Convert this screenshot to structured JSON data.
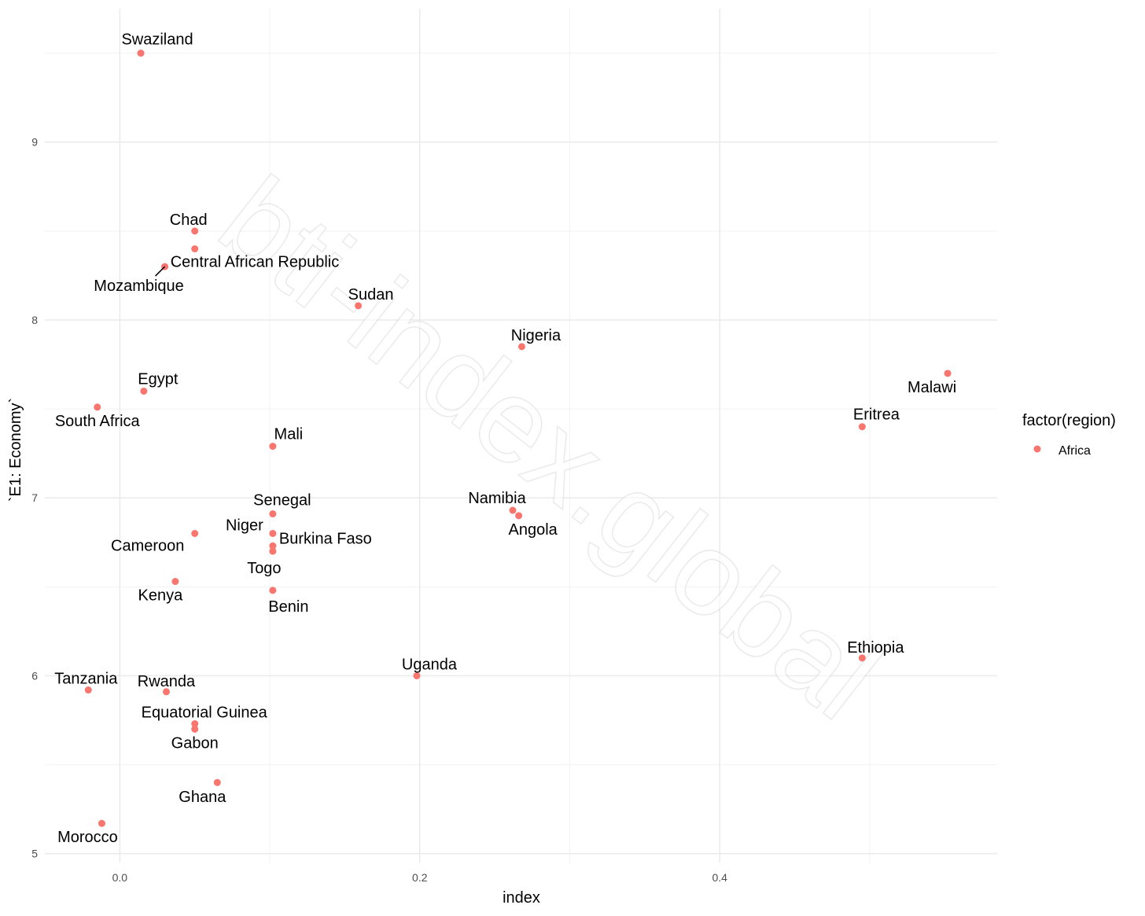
{
  "chart_data": {
    "type": "scatter",
    "xlabel": "index",
    "ylabel": "`E1: Economy`",
    "xlim": [
      -0.05,
      0.585
    ],
    "ylim": [
      4.95,
      9.75
    ],
    "x_ticks": [
      0.0,
      0.2,
      0.4
    ],
    "x_tick_labels": [
      "0.0",
      "0.2",
      "0.4"
    ],
    "y_ticks": [
      5,
      6,
      7,
      8,
      9
    ],
    "y_tick_labels": [
      "5",
      "6",
      "7",
      "8",
      "9"
    ],
    "grid": true,
    "legend": {
      "title": "factor(region)",
      "position": "right",
      "entries": [
        {
          "label": "Africa",
          "color": "#F8766D"
        }
      ]
    },
    "watermark": "bti-index.global",
    "points": [
      {
        "label": "Swaziland",
        "x": 0.014,
        "y": 9.5
      },
      {
        "label": "Chad",
        "x": 0.05,
        "y": 8.5
      },
      {
        "label": "Central African Republic",
        "x": 0.05,
        "y": 8.4
      },
      {
        "label": "Mozambique",
        "x": 0.03,
        "y": 8.3
      },
      {
        "label": "Sudan",
        "x": 0.159,
        "y": 8.08
      },
      {
        "label": "Nigeria",
        "x": 0.268,
        "y": 7.85
      },
      {
        "label": "Malawi",
        "x": 0.552,
        "y": 7.7
      },
      {
        "label": "Egypt",
        "x": 0.016,
        "y": 7.6
      },
      {
        "label": "South Africa",
        "x": -0.015,
        "y": 7.51
      },
      {
        "label": "Eritrea",
        "x": 0.495,
        "y": 7.4
      },
      {
        "label": "Mali",
        "x": 0.102,
        "y": 7.29
      },
      {
        "label": "Namibia",
        "x": 0.262,
        "y": 6.93
      },
      {
        "label": "Senegal",
        "x": 0.102,
        "y": 6.91
      },
      {
        "label": "Angola",
        "x": 0.266,
        "y": 6.9
      },
      {
        "label": "Cameroon",
        "x": 0.05,
        "y": 6.8
      },
      {
        "label": "Niger",
        "x": 0.102,
        "y": 6.8
      },
      {
        "label": "Burkina Faso",
        "x": 0.102,
        "y": 6.73
      },
      {
        "label": "Togo",
        "x": 0.102,
        "y": 6.7
      },
      {
        "label": "Kenya",
        "x": 0.037,
        "y": 6.53
      },
      {
        "label": "Benin",
        "x": 0.102,
        "y": 6.48
      },
      {
        "label": "Ethiopia",
        "x": 0.495,
        "y": 6.1
      },
      {
        "label": "Uganda",
        "x": 0.198,
        "y": 6.0
      },
      {
        "label": "Tanzania",
        "x": -0.021,
        "y": 5.92
      },
      {
        "label": "Rwanda",
        "x": 0.031,
        "y": 5.91
      },
      {
        "label": "Equatorial Guinea",
        "x": 0.05,
        "y": 5.73
      },
      {
        "label": "Gabon",
        "x": 0.05,
        "y": 5.7
      },
      {
        "label": "Ghana",
        "x": 0.065,
        "y": 5.4
      },
      {
        "label": "Morocco",
        "x": -0.012,
        "y": 5.17
      }
    ]
  }
}
